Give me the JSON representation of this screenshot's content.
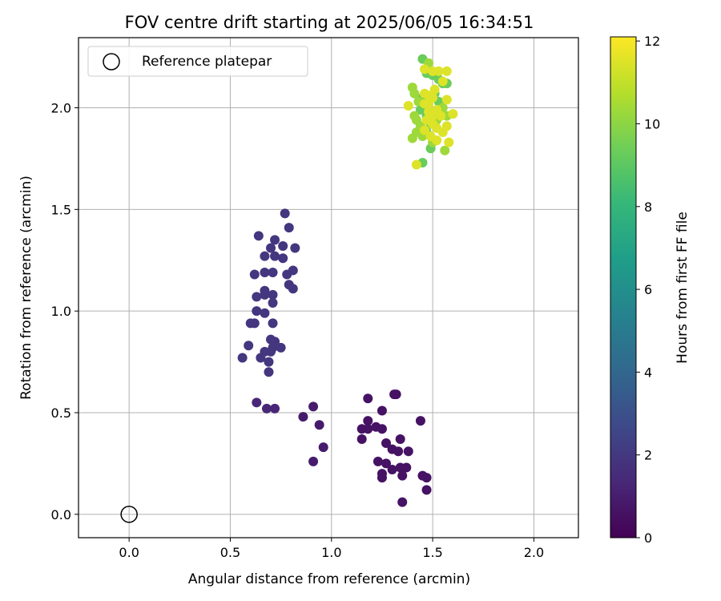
{
  "chart_data": {
    "type": "scatter",
    "title": "FOV centre drift starting at 2025/06/05 16:34:51",
    "xlabel": "Angular distance from reference (arcmin)",
    "ylabel": "Rotation from reference (arcmin)",
    "xlim": [
      -0.25,
      2.22
    ],
    "ylim": [
      -0.115,
      2.345
    ],
    "xticks": [
      0.0,
      0.5,
      1.0,
      1.5,
      2.0
    ],
    "xtick_labels": [
      "0.0",
      "0.5",
      "1.0",
      "1.5",
      "2.0"
    ],
    "yticks": [
      0.0,
      0.5,
      1.0,
      1.5,
      2.0
    ],
    "ytick_labels": [
      "0.0",
      "0.5",
      "1.0",
      "1.5",
      "2.0"
    ],
    "grid": true,
    "legend": {
      "placement": "top-left",
      "entries": [
        {
          "label": "Reference platepar",
          "marker": "open-circle"
        }
      ]
    },
    "reference_point": {
      "x": 0.0,
      "y": 0.0
    },
    "colorbar": {
      "label": "Hours from first FF file",
      "colormap": "viridis",
      "range": [
        0,
        12.1
      ],
      "ticks": [
        0,
        2,
        4,
        6,
        8,
        10,
        12
      ],
      "tick_labels": [
        "0",
        "2",
        "4",
        "6",
        "8",
        "10",
        "12"
      ],
      "stops": [
        "#440154",
        "#482878",
        "#3e4989",
        "#31688e",
        "#26828e",
        "#1f9e89",
        "#35b779",
        "#6ece58",
        "#b5de2b",
        "#fde725"
      ]
    },
    "points": [
      {
        "x": 1.18,
        "y": 0.57,
        "h": 0.6
      },
      {
        "x": 1.31,
        "y": 0.59,
        "h": 0.6
      },
      {
        "x": 1.32,
        "y": 0.59,
        "h": 0.6
      },
      {
        "x": 1.25,
        "y": 0.51,
        "h": 0.6
      },
      {
        "x": 1.44,
        "y": 0.46,
        "h": 0.6
      },
      {
        "x": 1.18,
        "y": 0.46,
        "h": 0.6
      },
      {
        "x": 1.15,
        "y": 0.42,
        "h": 0.6
      },
      {
        "x": 1.18,
        "y": 0.42,
        "h": 0.6
      },
      {
        "x": 1.22,
        "y": 0.43,
        "h": 0.6
      },
      {
        "x": 1.25,
        "y": 0.42,
        "h": 0.6
      },
      {
        "x": 1.15,
        "y": 0.37,
        "h": 0.6
      },
      {
        "x": 1.34,
        "y": 0.37,
        "h": 0.6
      },
      {
        "x": 1.27,
        "y": 0.35,
        "h": 0.6
      },
      {
        "x": 1.3,
        "y": 0.32,
        "h": 0.6
      },
      {
        "x": 1.33,
        "y": 0.31,
        "h": 0.6
      },
      {
        "x": 1.38,
        "y": 0.31,
        "h": 0.6
      },
      {
        "x": 1.23,
        "y": 0.26,
        "h": 0.6
      },
      {
        "x": 1.27,
        "y": 0.25,
        "h": 0.6
      },
      {
        "x": 1.34,
        "y": 0.23,
        "h": 0.6
      },
      {
        "x": 1.37,
        "y": 0.23,
        "h": 0.6
      },
      {
        "x": 1.3,
        "y": 0.22,
        "h": 0.6
      },
      {
        "x": 1.25,
        "y": 0.2,
        "h": 0.6
      },
      {
        "x": 1.25,
        "y": 0.18,
        "h": 0.6
      },
      {
        "x": 1.35,
        "y": 0.19,
        "h": 0.6
      },
      {
        "x": 1.45,
        "y": 0.19,
        "h": 0.6
      },
      {
        "x": 1.47,
        "y": 0.18,
        "h": 0.6
      },
      {
        "x": 1.47,
        "y": 0.12,
        "h": 0.6
      },
      {
        "x": 1.35,
        "y": 0.06,
        "h": 0.6
      },
      {
        "x": 0.91,
        "y": 0.53,
        "h": 0.9
      },
      {
        "x": 0.86,
        "y": 0.48,
        "h": 0.9
      },
      {
        "x": 0.94,
        "y": 0.44,
        "h": 0.9
      },
      {
        "x": 0.96,
        "y": 0.33,
        "h": 0.9
      },
      {
        "x": 0.91,
        "y": 0.26,
        "h": 0.9
      },
      {
        "x": 0.63,
        "y": 0.55,
        "h": 1.3
      },
      {
        "x": 0.68,
        "y": 0.52,
        "h": 1.3
      },
      {
        "x": 0.72,
        "y": 0.52,
        "h": 1.3
      },
      {
        "x": 0.77,
        "y": 1.48,
        "h": 1.9
      },
      {
        "x": 0.79,
        "y": 1.41,
        "h": 1.9
      },
      {
        "x": 0.64,
        "y": 1.37,
        "h": 1.9
      },
      {
        "x": 0.72,
        "y": 1.35,
        "h": 1.9
      },
      {
        "x": 0.7,
        "y": 1.31,
        "h": 1.9
      },
      {
        "x": 0.76,
        "y": 1.32,
        "h": 1.9
      },
      {
        "x": 0.82,
        "y": 1.31,
        "h": 1.9
      },
      {
        "x": 0.67,
        "y": 1.27,
        "h": 1.9
      },
      {
        "x": 0.72,
        "y": 1.27,
        "h": 1.9
      },
      {
        "x": 0.76,
        "y": 1.26,
        "h": 1.9
      },
      {
        "x": 0.62,
        "y": 1.18,
        "h": 1.9
      },
      {
        "x": 0.67,
        "y": 1.19,
        "h": 1.9
      },
      {
        "x": 0.71,
        "y": 1.19,
        "h": 1.9
      },
      {
        "x": 0.78,
        "y": 1.18,
        "h": 1.9
      },
      {
        "x": 0.81,
        "y": 1.2,
        "h": 1.9
      },
      {
        "x": 0.79,
        "y": 1.13,
        "h": 1.9
      },
      {
        "x": 0.81,
        "y": 1.11,
        "h": 1.9
      },
      {
        "x": 0.63,
        "y": 1.07,
        "h": 1.9
      },
      {
        "x": 0.67,
        "y": 1.08,
        "h": 1.9
      },
      {
        "x": 0.67,
        "y": 1.1,
        "h": 1.9
      },
      {
        "x": 0.71,
        "y": 1.08,
        "h": 1.9
      },
      {
        "x": 0.71,
        "y": 1.04,
        "h": 1.9
      },
      {
        "x": 0.63,
        "y": 1.0,
        "h": 1.9
      },
      {
        "x": 0.67,
        "y": 0.99,
        "h": 1.9
      },
      {
        "x": 0.6,
        "y": 0.94,
        "h": 1.9
      },
      {
        "x": 0.62,
        "y": 0.94,
        "h": 1.9
      },
      {
        "x": 0.71,
        "y": 0.94,
        "h": 1.9
      },
      {
        "x": 0.7,
        "y": 0.86,
        "h": 1.9
      },
      {
        "x": 0.72,
        "y": 0.85,
        "h": 1.9
      },
      {
        "x": 0.59,
        "y": 0.83,
        "h": 1.9
      },
      {
        "x": 0.67,
        "y": 0.8,
        "h": 1.9
      },
      {
        "x": 0.7,
        "y": 0.8,
        "h": 1.9
      },
      {
        "x": 0.71,
        "y": 0.82,
        "h": 1.9
      },
      {
        "x": 0.75,
        "y": 0.82,
        "h": 1.9
      },
      {
        "x": 0.56,
        "y": 0.77,
        "h": 1.9
      },
      {
        "x": 0.65,
        "y": 0.77,
        "h": 1.9
      },
      {
        "x": 0.69,
        "y": 0.75,
        "h": 1.9
      },
      {
        "x": 0.69,
        "y": 0.7,
        "h": 1.9
      },
      {
        "x": 1.45,
        "y": 2.24,
        "h": 9.3
      },
      {
        "x": 1.47,
        "y": 2.17,
        "h": 9.3
      },
      {
        "x": 1.5,
        "y": 2.16,
        "h": 9.3
      },
      {
        "x": 1.53,
        "y": 2.14,
        "h": 9.3
      },
      {
        "x": 1.55,
        "y": 2.12,
        "h": 9.3
      },
      {
        "x": 1.57,
        "y": 2.12,
        "h": 9.3
      },
      {
        "x": 1.51,
        "y": 2.07,
        "h": 9.3
      },
      {
        "x": 1.45,
        "y": 2.05,
        "h": 9.3
      },
      {
        "x": 1.53,
        "y": 2.03,
        "h": 9.3
      },
      {
        "x": 1.44,
        "y": 1.99,
        "h": 9.3
      },
      {
        "x": 1.47,
        "y": 1.96,
        "h": 9.3
      },
      {
        "x": 1.49,
        "y": 1.92,
        "h": 9.3
      },
      {
        "x": 1.47,
        "y": 1.88,
        "h": 9.3
      },
      {
        "x": 1.49,
        "y": 1.8,
        "h": 9.3
      },
      {
        "x": 1.45,
        "y": 1.73,
        "h": 9.3
      },
      {
        "x": 1.48,
        "y": 2.22,
        "h": 10.3
      },
      {
        "x": 1.4,
        "y": 2.1,
        "h": 10.3
      },
      {
        "x": 1.41,
        "y": 2.07,
        "h": 10.3
      },
      {
        "x": 1.43,
        "y": 2.03,
        "h": 10.3
      },
      {
        "x": 1.41,
        "y": 1.96,
        "h": 10.3
      },
      {
        "x": 1.42,
        "y": 1.94,
        "h": 10.3
      },
      {
        "x": 1.44,
        "y": 1.91,
        "h": 10.3
      },
      {
        "x": 1.4,
        "y": 1.85,
        "h": 10.3
      },
      {
        "x": 1.42,
        "y": 1.88,
        "h": 10.3
      },
      {
        "x": 1.45,
        "y": 1.86,
        "h": 10.3
      },
      {
        "x": 1.5,
        "y": 1.83,
        "h": 10.3
      },
      {
        "x": 1.52,
        "y": 1.94,
        "h": 10.3
      },
      {
        "x": 1.56,
        "y": 1.79,
        "h": 10.3
      },
      {
        "x": 1.55,
        "y": 2.0,
        "h": 10.3
      },
      {
        "x": 1.57,
        "y": 1.96,
        "h": 10.3
      },
      {
        "x": 1.46,
        "y": 2.19,
        "h": 11.5
      },
      {
        "x": 1.5,
        "y": 2.18,
        "h": 11.5
      },
      {
        "x": 1.53,
        "y": 2.18,
        "h": 11.5
      },
      {
        "x": 1.57,
        "y": 2.18,
        "h": 11.5
      },
      {
        "x": 1.55,
        "y": 2.13,
        "h": 11.5
      },
      {
        "x": 1.51,
        "y": 2.09,
        "h": 11.5
      },
      {
        "x": 1.46,
        "y": 2.07,
        "h": 11.5
      },
      {
        "x": 1.48,
        "y": 2.06,
        "h": 11.5
      },
      {
        "x": 1.5,
        "y": 2.05,
        "h": 11.5
      },
      {
        "x": 1.57,
        "y": 2.04,
        "h": 11.5
      },
      {
        "x": 1.38,
        "y": 2.01,
        "h": 11.5
      },
      {
        "x": 1.46,
        "y": 2.02,
        "h": 11.5
      },
      {
        "x": 1.48,
        "y": 2.02,
        "h": 11.5
      },
      {
        "x": 1.52,
        "y": 1.99,
        "h": 11.5
      },
      {
        "x": 1.48,
        "y": 1.98,
        "h": 11.5
      },
      {
        "x": 1.5,
        "y": 1.96,
        "h": 11.5
      },
      {
        "x": 1.54,
        "y": 1.96,
        "h": 11.5
      },
      {
        "x": 1.6,
        "y": 1.97,
        "h": 11.5
      },
      {
        "x": 1.47,
        "y": 1.94,
        "h": 11.5
      },
      {
        "x": 1.5,
        "y": 1.92,
        "h": 11.5
      },
      {
        "x": 1.52,
        "y": 1.9,
        "h": 11.5
      },
      {
        "x": 1.57,
        "y": 1.91,
        "h": 11.5
      },
      {
        "x": 1.46,
        "y": 1.89,
        "h": 11.5
      },
      {
        "x": 1.55,
        "y": 1.88,
        "h": 11.5
      },
      {
        "x": 1.49,
        "y": 1.86,
        "h": 11.5
      },
      {
        "x": 1.52,
        "y": 1.84,
        "h": 11.5
      },
      {
        "x": 1.58,
        "y": 1.83,
        "h": 11.5
      },
      {
        "x": 1.42,
        "y": 1.72,
        "h": 11.5
      }
    ]
  }
}
